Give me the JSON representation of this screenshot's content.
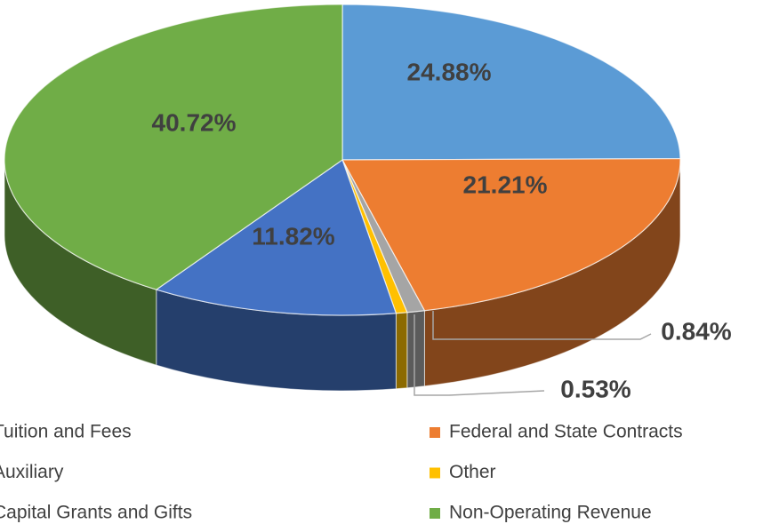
{
  "chart_data": {
    "type": "pie",
    "categories": [
      "Tuition and Fees",
      "Federal and State Contracts",
      "Capital Grants and Gifts",
      "Other",
      "Auxiliary",
      "Non-Operating Revenue"
    ],
    "values": [
      24.88,
      21.21,
      0.84,
      0.53,
      11.82,
      40.72
    ],
    "value_labels": [
      "24.88%",
      "21.21%",
      "0.84%",
      "0.53%",
      "11.82%",
      "40.72%"
    ],
    "colors": [
      "#5B9BD5",
      "#ED7D31",
      "#A5A5A5",
      "#FFC000",
      "#4472C4",
      "#70AD47"
    ],
    "legend_order": [
      0,
      1,
      4,
      3,
      2,
      5
    ]
  }
}
